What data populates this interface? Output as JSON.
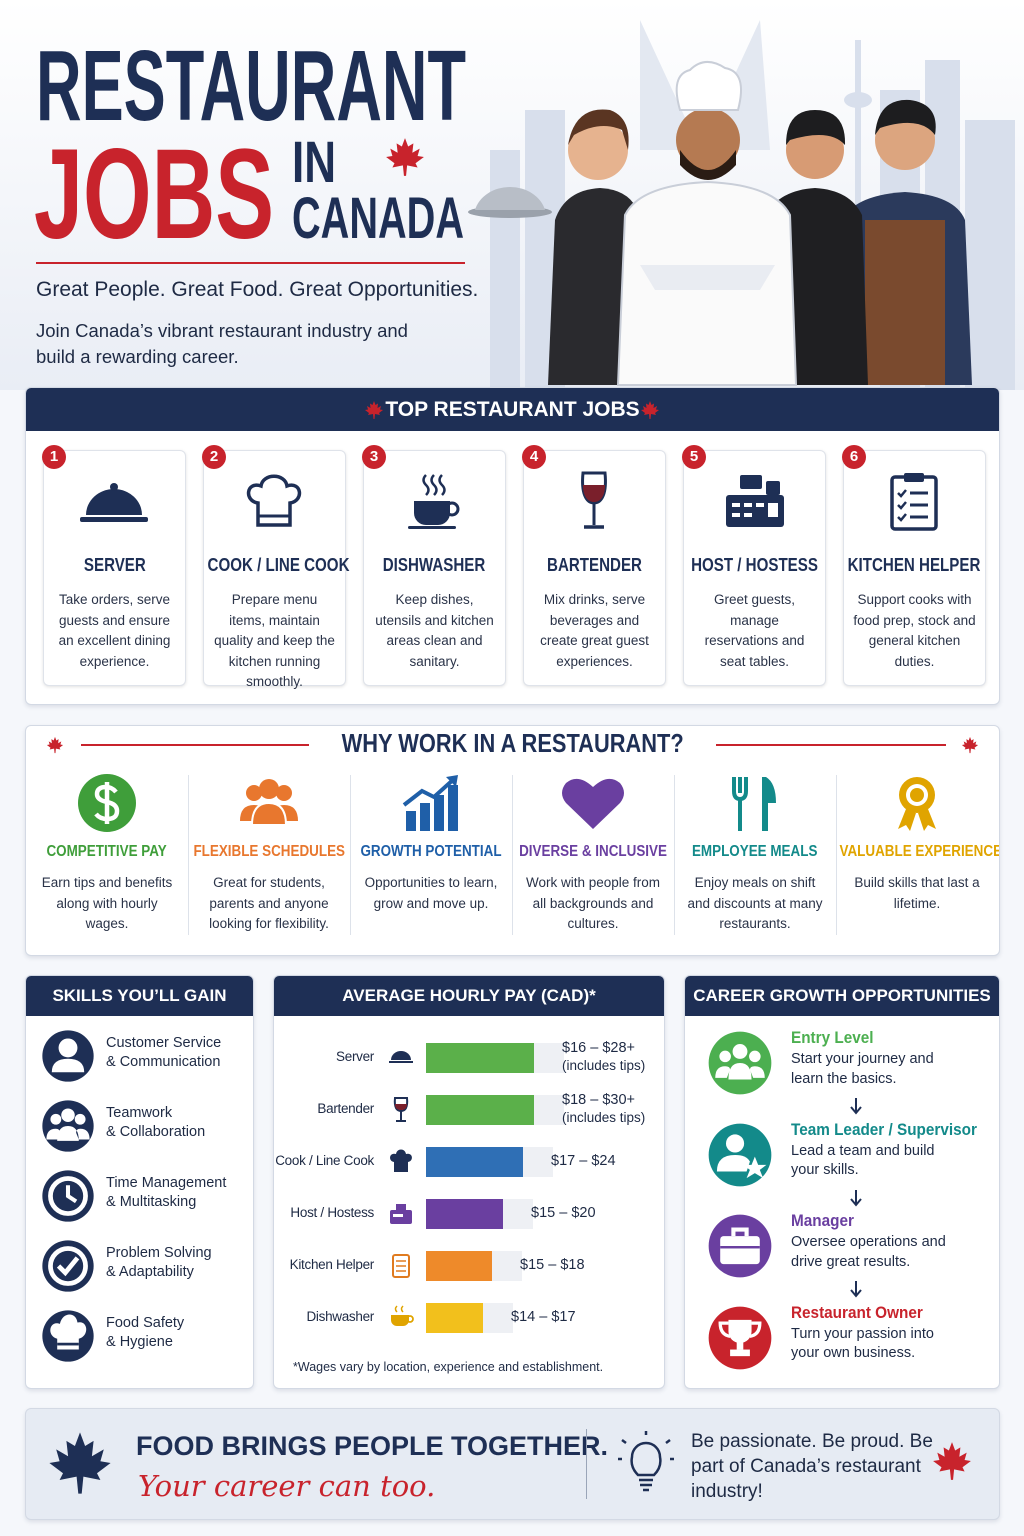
{
  "header": {
    "title_line1": "RESTAURANT",
    "title_jobs": "JOBS",
    "title_in": "IN",
    "title_canada": "CANADA",
    "tagline": "Great People. Great Food. Great Opportunities.",
    "intro": "Join Canada’s vibrant restaurant industry and build a rewarding career."
  },
  "top_jobs": {
    "title": "TOP RESTAURANT JOBS",
    "items": [
      {
        "number": "1",
        "name": "SERVER",
        "description": "Take orders, serve guests and ensure an excellent dining experience."
      },
      {
        "number": "2",
        "name": "COOK / LINE COOK",
        "description": "Prepare menu items, maintain quality and keep the kitchen running smoothly."
      },
      {
        "number": "3",
        "name": "DISHWASHER",
        "description": "Keep dishes, utensils and kitchen areas clean and sanitary."
      },
      {
        "number": "4",
        "name": "BARTENDER",
        "description": "Mix drinks, serve beverages and create great guest experiences."
      },
      {
        "number": "5",
        "name": "HOST / HOSTESS",
        "description": "Greet guests, manage reservations and seat tables."
      },
      {
        "number": "6",
        "name": "KITCHEN HELPER",
        "description": "Support cooks with food prep, stock and general kitchen duties."
      }
    ]
  },
  "why_work": {
    "title": "WHY WORK IN A RESTAURANT?",
    "items": [
      {
        "name": "COMPETITIVE PAY",
        "description": "Earn tips and benefits along with hourly wages.",
        "color": "#3f9e3a"
      },
      {
        "name": "FLEXIBLE SCHEDULES",
        "description": "Great for students, parents and anyone looking for flexibility.",
        "color": "#e8772e"
      },
      {
        "name": "GROWTH POTENTIAL",
        "description": "Opportunities to learn, grow and move up.",
        "color": "#1f5fa8"
      },
      {
        "name": "DIVERSE & INCLUSIVE",
        "description": "Work with people from all backgrounds and cultures.",
        "color": "#6a3fa0"
      },
      {
        "name": "EMPLOYEE MEALS",
        "description": "Enjoy meals on shift and discounts at many restaurants.",
        "color": "#138a8a"
      },
      {
        "name": "VALUABLE EXPERIENCE",
        "description": "Build skills that last a lifetime.",
        "color": "#e0a400"
      }
    ]
  },
  "skills": {
    "title": "SKILLS YOU’LL GAIN",
    "items": [
      {
        "line1": "Customer Service",
        "line2": "& Communication"
      },
      {
        "line1": "Teamwork",
        "line2": "& Collaboration"
      },
      {
        "line1": "Time Management",
        "line2": "& Multitasking"
      },
      {
        "line1": "Problem Solving",
        "line2": "& Adaptability"
      },
      {
        "line1": "Food Safety",
        "line2": "& Hygiene"
      }
    ]
  },
  "pay": {
    "title": "AVERAGE HOURLY PAY (CAD)*",
    "rows": [
      {
        "job": "Server",
        "range": "$16 – $28+",
        "note": "(includes tips)",
        "color": "#5bb04a"
      },
      {
        "job": "Bartender",
        "range": "$18 – $30+",
        "note": "(includes tips)",
        "color": "#5bb04a"
      },
      {
        "job": "Cook / Line Cook",
        "range": "$17 – $24",
        "color": "#2f6fb5"
      },
      {
        "job": "Host / Hostess",
        "range": "$15 – $20",
        "color": "#6a3fa0"
      },
      {
        "job": "Kitchen Helper",
        "range": "$15 – $18",
        "color": "#ee8a2a"
      },
      {
        "job": "Dishwasher",
        "range": "$14 – $17",
        "color": "#f2c01c"
      }
    ],
    "footnote": "*Wages vary by location, experience and establishment."
  },
  "career": {
    "title": "CAREER GROWTH OPPORTUNITIES",
    "steps": [
      {
        "name": "Entry Level",
        "description": "Start your journey and learn the basics.",
        "color": "#4caf50"
      },
      {
        "name": "Team Leader / Supervisor",
        "description": "Lead a team and build your skills.",
        "color": "#138a8a"
      },
      {
        "name": "Manager",
        "description": "Oversee operations and drive great results.",
        "color": "#6a3fa0"
      },
      {
        "name": "Restaurant Owner",
        "description": "Turn your passion into your own business.",
        "color": "#c8232c"
      }
    ]
  },
  "footer": {
    "headline": "FOOD BRINGS PEOPLE TOGETHER.",
    "script": "Your career can too.",
    "message": "Be passionate. Be proud. Be part of Canada’s restaurant industry!"
  }
}
